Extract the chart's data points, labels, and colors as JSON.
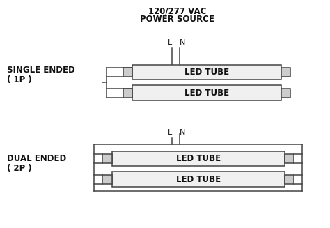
{
  "title_line1": "120/277 VAC",
  "title_line2": "POWER SOURCE",
  "single_ended_label1": "SINGLE ENDED",
  "single_ended_label2": "( 1P )",
  "dual_ended_label1": "DUAL ENDED",
  "dual_ended_label2": "( 2P )",
  "led_tube_label": "LED TUBE",
  "L_label": "L",
  "N_label": "N",
  "bg_color": "#ffffff",
  "tube_fill": "#f0f0f0",
  "tube_edge": "#444444",
  "wire_color": "#444444",
  "text_color": "#111111",
  "pin_fill": "#cccccc",
  "title_fontsize": 8.5,
  "label_fontsize": 8.5,
  "tube_text_fontsize": 8.5,
  "lw": 1.1
}
